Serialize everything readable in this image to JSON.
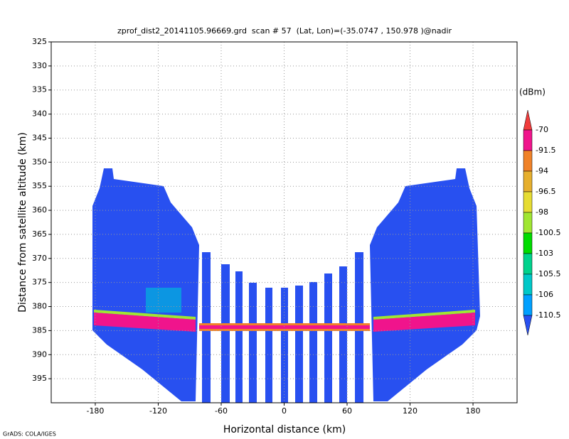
{
  "chart_data": {
    "type": "heatmap",
    "title": "zprof_dist2_20141105.96669.grd  scan # 57  (Lat, Lon)=(-35.0747 , 150.978 )@nadir",
    "x_label": "Horizontal distance (km)",
    "y_label": "Distance from satellite altitude (km)",
    "xlim": [
      -222,
      222
    ],
    "xticks": [
      -180,
      -120,
      -60,
      0,
      60,
      120,
      180
    ],
    "ylim": [
      325,
      400
    ],
    "y_inverted": true,
    "yticks": [
      325,
      330,
      335,
      340,
      345,
      350,
      355,
      360,
      365,
      370,
      375,
      380,
      385,
      390,
      395
    ],
    "grid": true,
    "colorbar": {
      "label": "(dBm)",
      "levels": [
        -70,
        -91.5,
        -94,
        -96.5,
        -98,
        -100.5,
        -103,
        -105.5,
        -106,
        -110.5
      ],
      "colors": [
        "#f03c3c",
        "#f0148c",
        "#f08228",
        "#e6af2d",
        "#e6dc32",
        "#a0e632",
        "#00dc00",
        "#00d28c",
        "#00c8c8",
        "#00a0ff",
        "#2850f0"
      ]
    },
    "credit": "GrADS: COLA/IGES"
  }
}
